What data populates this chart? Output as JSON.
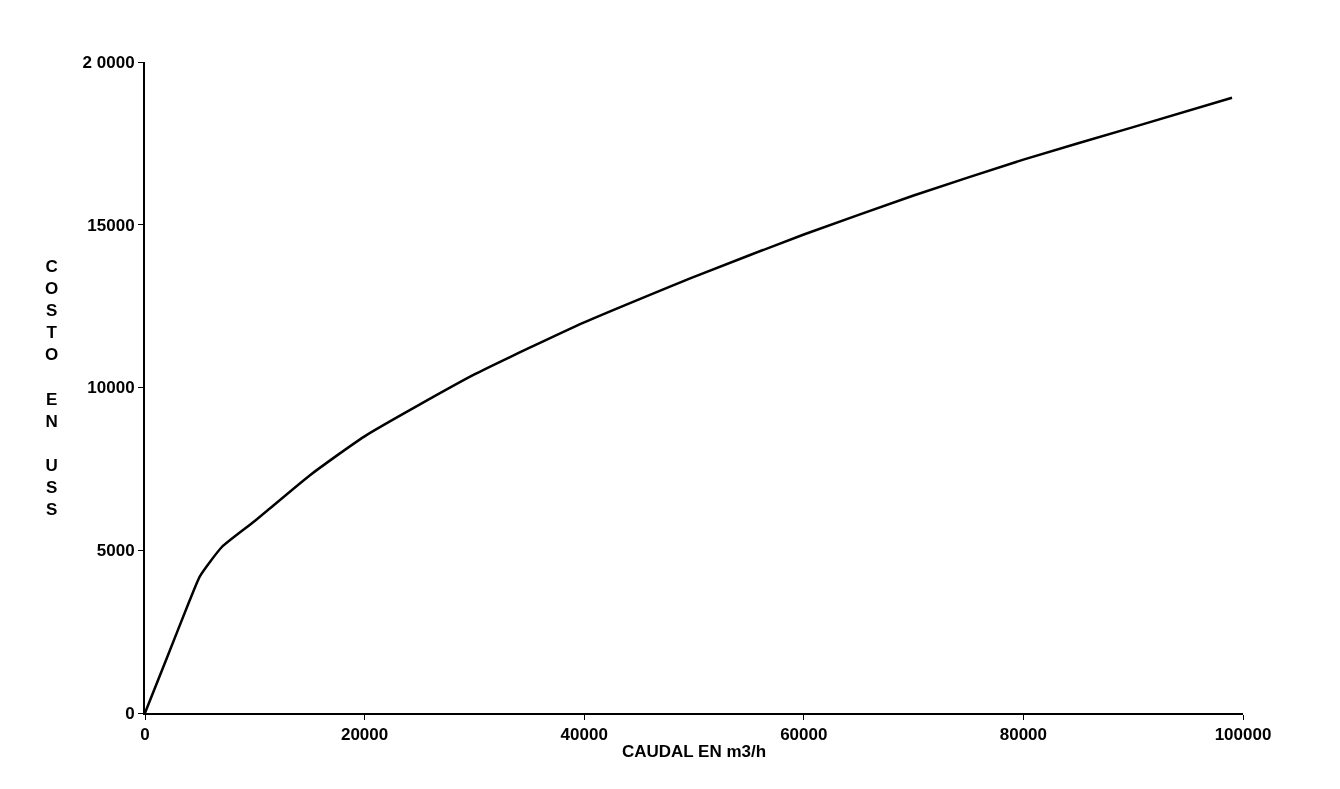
{
  "chart_data": {
    "type": "line",
    "xlabel": "CAUDAL EN m3/h",
    "ylabel": "COSTO EN USS",
    "x": [
      0,
      2000,
      4000,
      5000,
      7000,
      10000,
      15000,
      20000,
      30000,
      40000,
      50000,
      60000,
      70000,
      80000,
      90000,
      99000
    ],
    "series": [
      {
        "color": "#000000",
        "values": [
          0,
          1700,
          3400,
          4200,
          5100,
          5900,
          7300,
          8500,
          10400,
          12000,
          13400,
          14700,
          15900,
          17000,
          18000,
          18900
        ]
      }
    ],
    "xlim": [
      0,
      100000
    ],
    "xticks": [
      0,
      20000,
      40000,
      60000,
      80000,
      100000
    ],
    "ylim": [
      0,
      20000
    ],
    "yticks": [
      0,
      5000,
      10000,
      15000,
      {
        "value": 20000,
        "label": "2 0000"
      }
    ],
    "marker": "none",
    "line_style": "solid"
  }
}
